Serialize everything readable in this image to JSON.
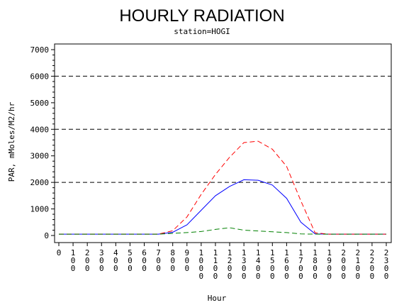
{
  "chart_data": {
    "type": "line",
    "title": "HOURLY RADIATION",
    "subtitle": "station=HOGI",
    "xlabel": "Hour",
    "ylabel": "PAR, mMoles/M2/hr",
    "x": [
      0,
      100,
      200,
      300,
      400,
      500,
      600,
      700,
      800,
      900,
      1000,
      1100,
      1200,
      1300,
      1400,
      1500,
      1600,
      1700,
      1800,
      1900,
      2000,
      2100,
      2200,
      2300
    ],
    "xticks": [
      "0",
      "100",
      "200",
      "300",
      "400",
      "500",
      "600",
      "700",
      "800",
      "900",
      "1000",
      "1100",
      "1200",
      "1300",
      "1400",
      "1500",
      "1600",
      "1700",
      "1800",
      "1900",
      "2000",
      "2100",
      "2200",
      "2300"
    ],
    "ylim": [
      0,
      7000
    ],
    "yticks": [
      0,
      1000,
      2000,
      3000,
      4000,
      5000,
      6000,
      7000
    ],
    "reference_lines": [
      2000,
      4000,
      6000
    ],
    "series": [
      {
        "color": "#0000ff",
        "dash": "solid",
        "values": [
          50,
          50,
          50,
          50,
          50,
          50,
          50,
          50,
          120,
          400,
          950,
          1500,
          1850,
          2100,
          2080,
          1900,
          1400,
          500,
          60,
          50,
          50,
          50,
          50,
          50
        ]
      },
      {
        "color": "#ff0000",
        "dash": "dashed",
        "values": [
          50,
          50,
          50,
          50,
          50,
          50,
          50,
          50,
          180,
          700,
          1550,
          2300,
          2950,
          3500,
          3550,
          3250,
          2600,
          1300,
          100,
          50,
          50,
          50,
          50,
          50
        ]
      },
      {
        "color": "#008000",
        "dash": "dashed",
        "values": [
          50,
          50,
          50,
          50,
          50,
          50,
          50,
          50,
          80,
          110,
          150,
          230,
          290,
          200,
          170,
          140,
          110,
          60,
          50,
          50,
          50,
          50,
          50,
          50
        ]
      }
    ]
  }
}
